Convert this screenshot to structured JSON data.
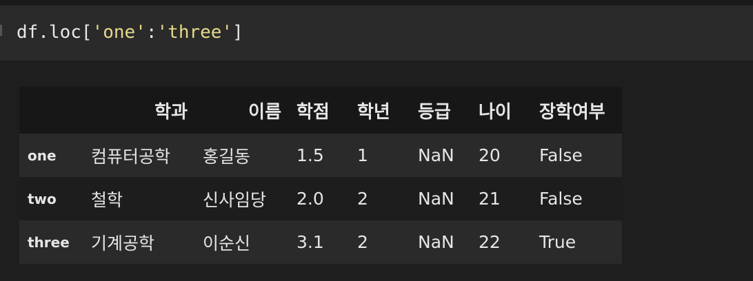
{
  "code": {
    "prefix": "df.loc[",
    "arg1": "'one'",
    "sep": ":",
    "arg2": "'three'",
    "suffix": "]"
  },
  "table": {
    "columns": [
      "학과",
      "이름",
      "학점",
      "학년",
      "등급",
      "나이",
      "장학여부"
    ],
    "rows": [
      {
        "index": "one",
        "cells": [
          "컴퓨터공학",
          "홍길동",
          "1.5",
          "1",
          "NaN",
          "20",
          "False"
        ]
      },
      {
        "index": "two",
        "cells": [
          "철학",
          "신사임당",
          "2.0",
          "2",
          "NaN",
          "21",
          "False"
        ]
      },
      {
        "index": "three",
        "cells": [
          "기계공학",
          "이순신",
          "3.1",
          "2",
          "NaN",
          "22",
          "True"
        ]
      }
    ]
  }
}
